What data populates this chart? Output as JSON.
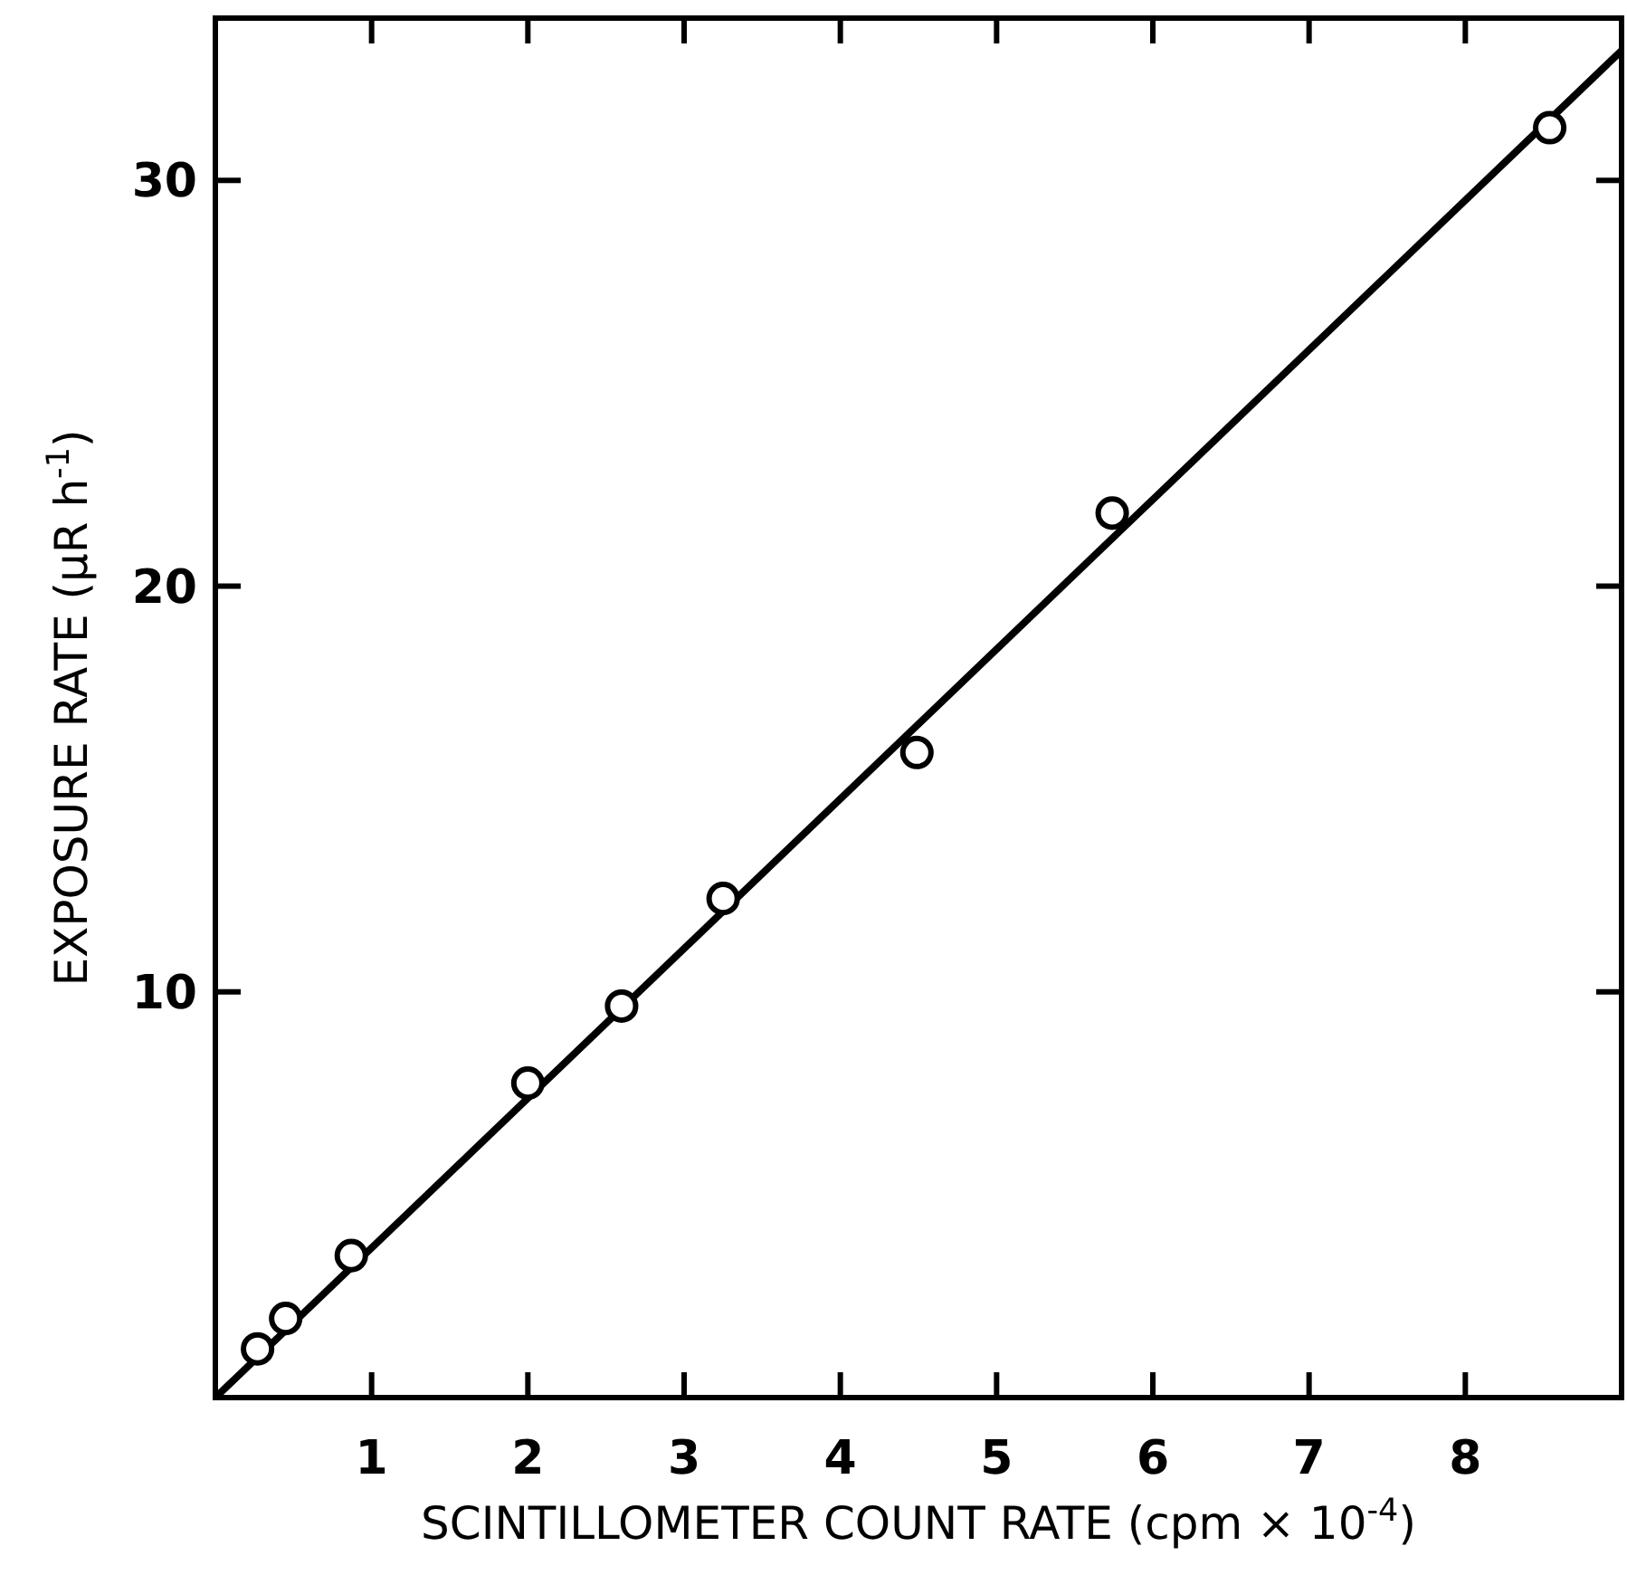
{
  "chart_data": {
    "type": "scatter",
    "xlabel": "SCINTILLOMETER COUNT RATE (cpm × 10$^{-4}$)",
    "ylabel": "EXPOSURE RATE (μR h$^{-1}$)",
    "xlim": [
      0,
      9
    ],
    "ylim": [
      0,
      34
    ],
    "xticks": [
      1,
      2,
      3,
      4,
      5,
      6,
      7,
      8
    ],
    "yticks": [
      10,
      20,
      30
    ],
    "grid": false,
    "marker": "circle",
    "series": [
      {
        "color": "#000000",
        "x": [
          0.27,
          0.45,
          0.87,
          2.0,
          2.6,
          3.25,
          4.49,
          5.74,
          8.54
        ],
        "values": [
          1.2,
          1.95,
          3.5,
          7.75,
          9.65,
          12.3,
          15.9,
          21.8,
          31.3
        ]
      },
      {
        "type": "line",
        "color": "#000000",
        "line_style": "solid",
        "marker": "none",
        "x": [
          0,
          9
        ],
        "values": [
          0,
          33.2
        ]
      }
    ]
  }
}
